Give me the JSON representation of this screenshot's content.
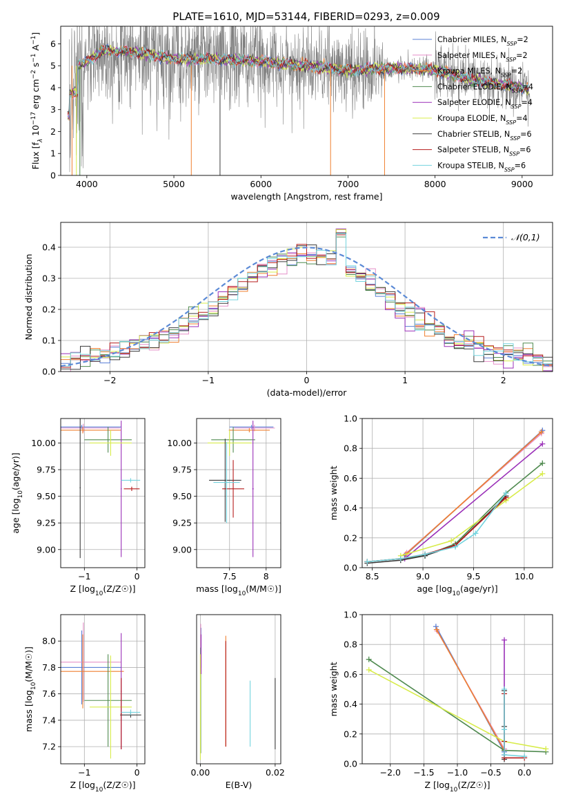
{
  "figure_title": "PLATE=1610, MJD=53144, FIBERID=0293, z=0.009",
  "colors": {
    "Chabrier MILES": "#5a7fd6",
    "Salpeter MILES": "#e58fc8",
    "Kroupa MILES": "#ef7f2e",
    "Chabrier ELODIE": "#4f8a4f",
    "Salpeter ELODIE": "#9a2fb8",
    "Kroupa ELODIE": "#d8ec4a",
    "Chabrier STELIB": "#3a3a3a",
    "Salpeter STELIB": "#b51a1a",
    "Kroupa STELIB": "#73d3de",
    "noisy": "#808080",
    "normal": "#5b8ad6"
  },
  "chart_data": [
    {
      "id": "spectrum",
      "type": "line",
      "xlabel": "wavelength [Angstrom, rest frame]",
      "ylabel": "Flux [f_λ 10^-17 erg cm^-2 s^-1 A^-1]",
      "xlim": [
        3700,
        9350
      ],
      "ylim": [
        0,
        6.8
      ],
      "xticks": [
        4000,
        5000,
        6000,
        7000,
        8000,
        9000
      ],
      "yticks": [
        0,
        1,
        2,
        3,
        4,
        5,
        6
      ],
      "legend_position": "top-right",
      "series": [
        {
          "name": "Chabrier MILES, N_SSP=2",
          "color_key": "Chabrier MILES"
        },
        {
          "name": "Salpeter MILES, N_SSP=2",
          "color_key": "Salpeter MILES"
        },
        {
          "name": "Kroupa MILES, N_SSP=2",
          "color_key": "Kroupa MILES"
        },
        {
          "name": "Chabrier ELODIE, N_SSP=4",
          "color_key": "Chabrier ELODIE"
        },
        {
          "name": "Salpeter ELODIE, N_SSP=4",
          "color_key": "Salpeter ELODIE"
        },
        {
          "name": "Kroupa ELODIE, N_SSP=4",
          "color_key": "Kroupa ELODIE"
        },
        {
          "name": "Chabrier STELIB, N_SSP=6",
          "color_key": "Chabrier STELIB"
        },
        {
          "name": "Salpeter STELIB, N_SSP=6",
          "color_key": "Salpeter STELIB"
        },
        {
          "name": "Kroupa STELIB, N_SSP=6",
          "color_key": "Kroupa STELIB"
        }
      ],
      "continuum": {
        "x": [
          3800,
          4000,
          4200,
          4600,
          5000,
          5500,
          6000,
          6500,
          7000,
          7500,
          8000,
          8500,
          9000,
          9100
        ],
        "y": [
          4.9,
          5.2,
          5.7,
          5.6,
          5.3,
          5.3,
          5.2,
          5.0,
          4.8,
          4.9,
          4.8,
          4.3,
          4.0,
          3.9
        ]
      }
    },
    {
      "id": "residuals",
      "type": "step",
      "xlabel": "(data-model)/error",
      "ylabel": "Normed distribution",
      "xlim": [
        -2.5,
        2.5
      ],
      "ylim": [
        0,
        0.48
      ],
      "xticks": [
        -2,
        -1,
        0,
        1,
        2
      ],
      "yticks": [
        0.0,
        0.1,
        0.2,
        0.3,
        0.4
      ],
      "grid": true,
      "legend": "𝒩(0,1)",
      "legend_position": "top-right",
      "bin_width": 0.1
    },
    {
      "id": "age_vs_Z",
      "type": "errorbar",
      "xlabel": "Z [log10(Z/Z☉)]",
      "ylabel": "age  [log10(age/yr)]",
      "xlim": [
        -1.45,
        0.15
      ],
      "ylim": [
        8.83,
        10.23
      ],
      "xticks": [
        -1,
        0
      ],
      "yticks": [
        9.0,
        9.25,
        9.5,
        9.75,
        10.0
      ],
      "grid": true,
      "points": [
        {
          "s": "Chabrier MILES",
          "x": -1.05,
          "y": 10.15,
          "xerr": 0.75,
          "yerr": 0.02
        },
        {
          "s": "Salpeter MILES",
          "x": -1.02,
          "y": 10.14,
          "xerr": 0.7,
          "yerr": 0.04
        },
        {
          "s": "Kroupa MILES",
          "x": -1.03,
          "y": 10.12,
          "xerr": 0.72,
          "yerr": 0.03
        },
        {
          "s": "Chabrier ELODIE",
          "x": -0.55,
          "y": 10.03,
          "xerr": 0.45,
          "yerr": 0.12
        },
        {
          "s": "Salpeter ELODIE",
          "x": -0.3,
          "y": 9.57,
          "xerr": 0.01,
          "yerr": 0.64
        },
        {
          "s": "Kroupa ELODIE",
          "x": -0.5,
          "y": 10.0,
          "xerr": 0.4,
          "yerr": 0.12
        },
        {
          "s": "Chabrier STELIB",
          "x": -1.08,
          "y": 9.58,
          "xerr": 0.01,
          "yerr": 0.66
        },
        {
          "s": "Salpeter STELIB",
          "x": -0.1,
          "y": 9.57,
          "xerr": 0.15,
          "yerr": 0.02
        },
        {
          "s": "Kroupa STELIB",
          "x": -0.12,
          "y": 9.65,
          "xerr": 0.18,
          "yerr": 0.02
        }
      ]
    },
    {
      "id": "age_vs_mass",
      "type": "errorbar",
      "xlabel": "mass [log10(M/M☉)]",
      "xlim": [
        7.05,
        8.2
      ],
      "ylim": [
        8.83,
        10.23
      ],
      "xticks": [
        7.5,
        8.0
      ],
      "yticks": [
        9.0,
        9.25,
        9.5,
        9.75,
        10.0
      ],
      "grid": true,
      "points": [
        {
          "s": "Chabrier MILES",
          "x": 7.8,
          "y": 10.15,
          "xerr": 0.3,
          "yerr": 0.02
        },
        {
          "s": "Salpeter MILES",
          "x": 7.84,
          "y": 10.14,
          "xerr": 0.28,
          "yerr": 0.03
        },
        {
          "s": "Kroupa MILES",
          "x": 7.77,
          "y": 10.12,
          "xerr": 0.28,
          "yerr": 0.02
        },
        {
          "s": "Chabrier ELODIE",
          "x": 7.55,
          "y": 10.03,
          "xerr": 0.3,
          "yerr": 0.12
        },
        {
          "s": "Salpeter ELODIE",
          "x": 7.82,
          "y": 9.57,
          "xerr": 0.01,
          "yerr": 0.64
        },
        {
          "s": "Kroupa ELODIE",
          "x": 7.5,
          "y": 10.0,
          "xerr": 0.3,
          "yerr": 0.12
        },
        {
          "s": "Chabrier STELIB",
          "x": 7.44,
          "y": 9.65,
          "xerr": 0.22,
          "yerr": 0.39
        },
        {
          "s": "Salpeter STELIB",
          "x": 7.55,
          "y": 9.57,
          "xerr": 0.15,
          "yerr": 0.27
        },
        {
          "s": "Kroupa STELIB",
          "x": 7.46,
          "y": 9.63,
          "xerr": 0.18,
          "yerr": 0.38
        }
      ]
    },
    {
      "id": "weight_vs_age",
      "type": "line",
      "xlabel": "age  [log10(age/yr)]",
      "ylabel": "mass weight",
      "xlim": [
        8.4,
        10.28
      ],
      "ylim": [
        0,
        1.0
      ],
      "xticks": [
        8.5,
        9.0,
        9.5,
        10.0
      ],
      "yticks": [
        0.0,
        0.2,
        0.4,
        0.6,
        0.8,
        1.0
      ],
      "grid": true,
      "series": [
        {
          "name": "Chabrier MILES",
          "x": [
            8.82,
            10.18
          ],
          "y": [
            0.08,
            0.92
          ]
        },
        {
          "name": "Salpeter MILES",
          "x": [
            8.84,
            10.17
          ],
          "y": [
            0.1,
            0.9
          ]
        },
        {
          "name": "Kroupa MILES",
          "x": [
            8.83,
            10.17
          ],
          "y": [
            0.09,
            0.91
          ]
        },
        {
          "name": "Chabrier ELODIE",
          "x": [
            8.45,
            8.78,
            9.02,
            9.32,
            9.82,
            10.18
          ],
          "y": [
            0.04,
            0.06,
            0.08,
            0.16,
            0.5,
            0.7
          ]
        },
        {
          "name": "Salpeter ELODIE",
          "x": [
            8.82,
            10.18
          ],
          "y": [
            0.06,
            0.83
          ]
        },
        {
          "name": "Kroupa ELODIE",
          "x": [
            8.78,
            9.28,
            9.82,
            10.18
          ],
          "y": [
            0.08,
            0.18,
            0.45,
            0.63
          ]
        },
        {
          "name": "Chabrier STELIB",
          "x": [
            8.45,
            8.78,
            9.02,
            9.32,
            9.82
          ],
          "y": [
            0.03,
            0.05,
            0.08,
            0.15,
            0.48
          ]
        },
        {
          "name": "Salpeter STELIB",
          "x": [
            8.45,
            8.78,
            9.02,
            9.32,
            9.82
          ],
          "y": [
            0.04,
            0.06,
            0.09,
            0.15,
            0.47
          ]
        },
        {
          "name": "Kroupa STELIB",
          "x": [
            8.45,
            8.78,
            9.02,
            9.32,
            9.52,
            9.82
          ],
          "y": [
            0.04,
            0.06,
            0.09,
            0.14,
            0.23,
            0.5
          ]
        }
      ]
    },
    {
      "id": "mass_vs_Z",
      "type": "errorbar",
      "xlabel": "Z [log10(Z/Z☉)]",
      "ylabel": "mass [log10(M/M☉)]",
      "xlim": [
        -1.45,
        0.15
      ],
      "ylim": [
        7.07,
        8.2
      ],
      "xticks": [
        -1,
        0
      ],
      "yticks": [
        7.2,
        7.4,
        7.6,
        7.8,
        8.0
      ],
      "grid": true,
      "points": [
        {
          "s": "Chabrier MILES",
          "x": -1.05,
          "y": 7.8,
          "xerr": 0.75,
          "yerr": 0.28
        },
        {
          "s": "Salpeter MILES",
          "x": -1.02,
          "y": 7.84,
          "xerr": 0.72,
          "yerr": 0.3
        },
        {
          "s": "Kroupa MILES",
          "x": -1.03,
          "y": 7.77,
          "xerr": 0.78,
          "yerr": 0.28
        },
        {
          "s": "Chabrier ELODIE",
          "x": -0.55,
          "y": 7.55,
          "xerr": 0.45,
          "yerr": 0.35
        },
        {
          "s": "Salpeter ELODIE",
          "x": -0.3,
          "y": 7.62,
          "xerr": 0.01,
          "yerr": 0.44
        },
        {
          "s": "Kroupa ELODIE",
          "x": -0.5,
          "y": 7.5,
          "xerr": 0.4,
          "yerr": 0.39
        },
        {
          "s": "Chabrier STELIB",
          "x": -0.12,
          "y": 7.44,
          "xerr": 0.2,
          "yerr": 0.02
        },
        {
          "s": "Salpeter STELIB",
          "x": -0.3,
          "y": 7.45,
          "xerr": 0.01,
          "yerr": 0.27
        },
        {
          "s": "Kroupa STELIB",
          "x": -0.12,
          "y": 7.46,
          "xerr": 0.18,
          "yerr": 0.02
        }
      ]
    },
    {
      "id": "mass_vs_EBV",
      "type": "errorbar",
      "xlabel": "E(B-V)",
      "xlim": [
        -0.001,
        0.0215
      ],
      "ylim": [
        7.07,
        8.2
      ],
      "xticks": [
        0.0,
        0.02
      ],
      "grid": true,
      "points": [
        {
          "s": "Chabrier MILES",
          "x": 0.0002,
          "y": 7.95,
          "xerr": 0,
          "yerr": 0.15
        },
        {
          "s": "Salpeter MILES",
          "x": 0.0001,
          "y": 7.98,
          "xerr": 0,
          "yerr": 0.15
        },
        {
          "s": "Kroupa MILES",
          "x": 0.0068,
          "y": 7.62,
          "xerr": 0,
          "yerr": 0.42
        },
        {
          "s": "Chabrier ELODIE",
          "x": 0.0001,
          "y": 7.55,
          "xerr": 0,
          "yerr": 0.4
        },
        {
          "s": "Salpeter ELODIE",
          "x": 0.0002,
          "y": 7.9,
          "xerr": 0,
          "yerr": 0.15
        },
        {
          "s": "Kroupa ELODIE",
          "x": 0.0,
          "y": 7.5,
          "xerr": 0,
          "yerr": 0.4
        },
        {
          "s": "Chabrier STELIB",
          "x": 0.02,
          "y": 7.45,
          "xerr": 0,
          "yerr": 0.27
        },
        {
          "s": "Salpeter STELIB",
          "x": 0.0068,
          "y": 7.6,
          "xerr": 0,
          "yerr": 0.4
        },
        {
          "s": "Kroupa STELIB",
          "x": 0.0133,
          "y": 7.45,
          "xerr": 0,
          "yerr": 0.25
        }
      ]
    },
    {
      "id": "weight_vs_Z",
      "type": "line",
      "xlabel": "Z [log10(Z/Z☉)]",
      "ylabel": "mass weight",
      "xlim": [
        -2.42,
        0.42
      ],
      "ylim": [
        0,
        1.0
      ],
      "xticks": [
        -2.0,
        -1.5,
        -1.0,
        -0.5,
        0.0
      ],
      "yticks": [
        0.0,
        0.2,
        0.4,
        0.6,
        0.8,
        1.0
      ],
      "grid": true,
      "series": [
        {
          "name": "Chabrier MILES",
          "x": [
            -1.32,
            -0.3
          ],
          "y": [
            0.92,
            0.08
          ]
        },
        {
          "name": "Salpeter MILES",
          "x": [
            -1.3,
            -0.3
          ],
          "y": [
            0.89,
            0.1
          ]
        },
        {
          "name": "Kroupa MILES",
          "x": [
            -1.31,
            -0.3
          ],
          "y": [
            0.9,
            0.09
          ]
        },
        {
          "name": "Chabrier ELODIE",
          "x": [
            -2.32,
            -0.3,
            0.32
          ],
          "y": [
            0.7,
            0.09,
            0.08
          ]
        },
        {
          "name": "Salpeter ELODIE",
          "x": [
            -0.3,
            -0.3
          ],
          "y": [
            0.83,
            0.06
          ]
        },
        {
          "name": "Kroupa ELODIE",
          "x": [
            -2.32,
            -0.3,
            0.32
          ],
          "y": [
            0.63,
            0.15,
            0.1
          ]
        },
        {
          "name": "Chabrier STELIB",
          "x": [
            -0.3,
            -0.3,
            -0.3
          ],
          "y": [
            0.49,
            0.25,
            0.03
          ]
        },
        {
          "name": "Salpeter STELIB",
          "x": [
            -0.3,
            -0.3,
            -0.3,
            0.0
          ],
          "y": [
            0.47,
            0.15,
            0.04,
            0.04
          ]
        },
        {
          "name": "Kroupa STELIB",
          "x": [
            -0.3,
            -0.3,
            -0.3,
            0.0
          ],
          "y": [
            0.5,
            0.23,
            0.06,
            0.05
          ]
        }
      ]
    }
  ]
}
